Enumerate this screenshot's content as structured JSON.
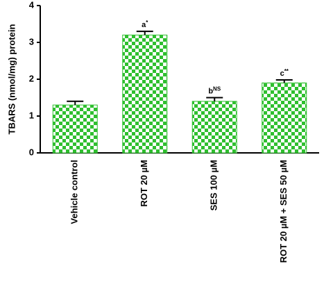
{
  "chart_data": {
    "type": "bar",
    "y_label": "TBARS (nmol/mg) protein",
    "categories": [
      "Vehicle control",
      "ROT 20 µM",
      "SES 100 µM",
      "ROT 20 µM + SES 50 µM"
    ],
    "values": [
      1.3,
      3.2,
      1.4,
      1.9
    ],
    "errors": [
      0.1,
      0.1,
      0.1,
      0.08
    ],
    "annotations": [
      null,
      {
        "letter": "a",
        "sup": "*"
      },
      {
        "letter": "b",
        "sup": "NS"
      },
      {
        "letter": "c",
        "sup": "**"
      }
    ],
    "color": "#2fbf2f",
    "ylim": [
      0,
      4
    ],
    "yticks": [
      0,
      1,
      2,
      3,
      4
    ]
  }
}
